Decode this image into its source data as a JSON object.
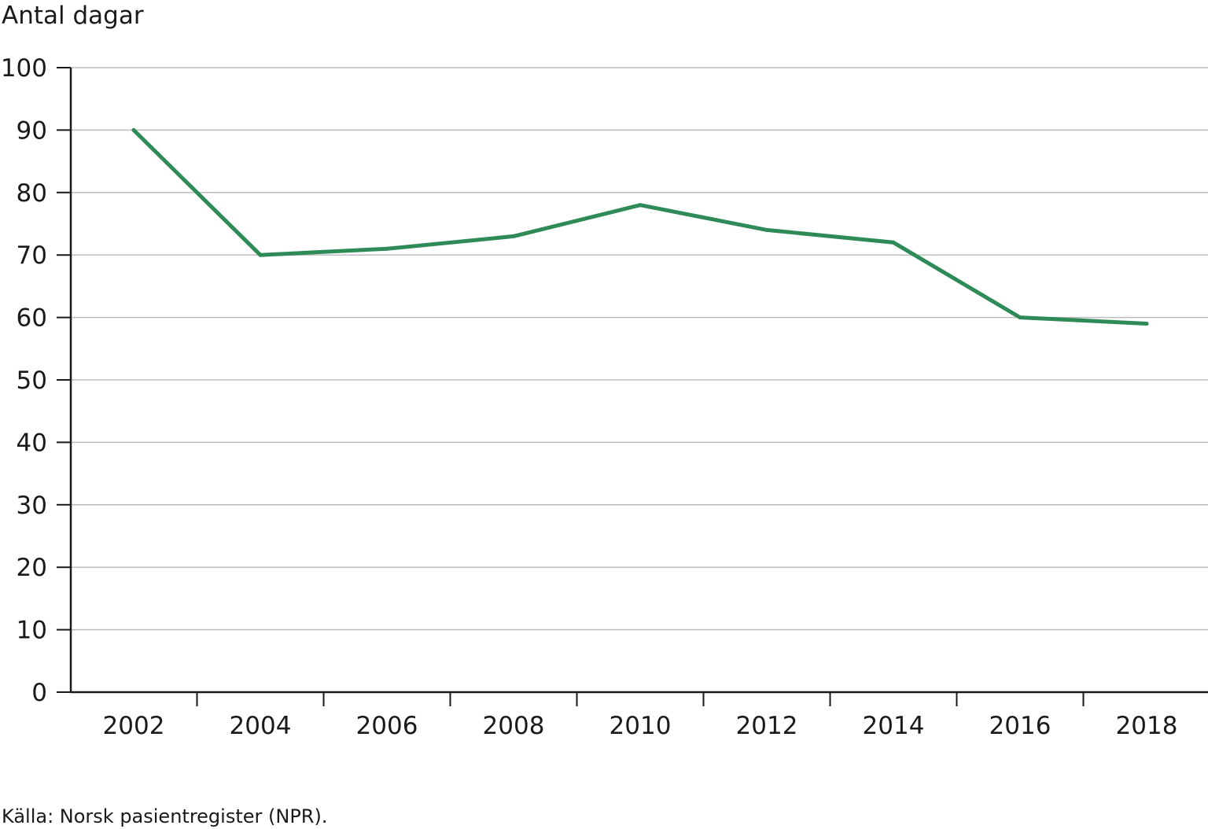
{
  "chart_data": {
    "type": "line",
    "ylabel": "Antal dagar",
    "xlabel": "",
    "ylim": [
      0,
      100
    ],
    "yticks": [
      0,
      10,
      20,
      30,
      40,
      50,
      60,
      70,
      80,
      90,
      100
    ],
    "xticks": [
      2002,
      2004,
      2006,
      2008,
      2010,
      2012,
      2014,
      2016,
      2018
    ],
    "xlim": [
      2000,
      2019
    ],
    "grid": true,
    "series": [
      {
        "color": "#2e8b57",
        "points": [
          {
            "x": 2002,
            "y": 90
          },
          {
            "x": 2004,
            "y": 70
          },
          {
            "x": 2006,
            "y": 71
          },
          {
            "x": 2008,
            "y": 73
          },
          {
            "x": 2010,
            "y": 78
          },
          {
            "x": 2012,
            "y": 74
          },
          {
            "x": 2014,
            "y": 72
          },
          {
            "x": 2016,
            "y": 60
          },
          {
            "x": 2018,
            "y": 59
          }
        ]
      }
    ],
    "source": "Källa: Norsk pasientregister (NPR)."
  }
}
